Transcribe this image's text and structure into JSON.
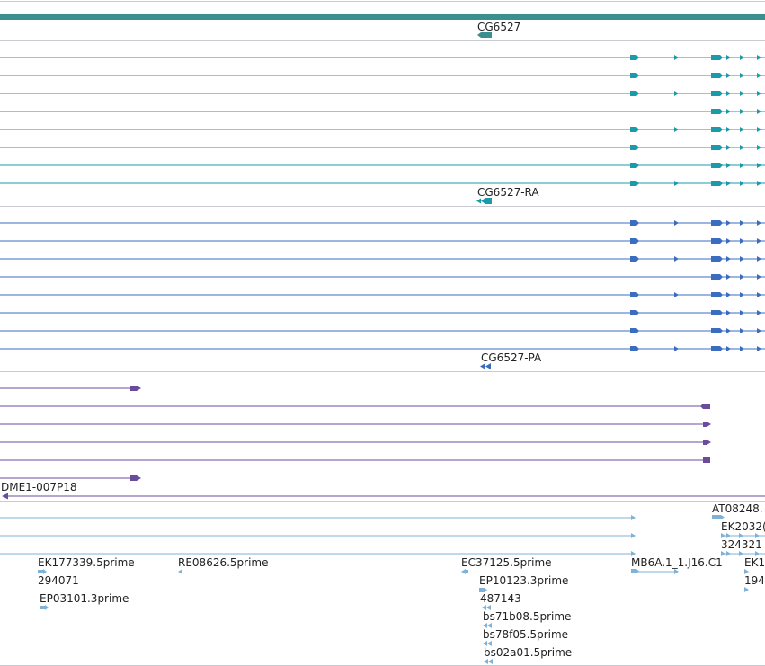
{
  "colors": {
    "gene": "#3a8f8f",
    "cds": "#1a9aaa",
    "mrna": "#3a6cc0",
    "cdna_clone": "#6a4c9c",
    "est": "#7fb2d6",
    "separator": "#c8ccd0"
  },
  "tracks": {
    "gene": {
      "label": "CG6527"
    },
    "cds": {
      "label": "CG6527-RA",
      "row_count": 8
    },
    "mrna": {
      "label": "CG6527-PA",
      "row_count": 8
    },
    "cdna_clone": {
      "label": "DME1-007P18"
    },
    "est": {
      "labels": [
        "AT08248.",
        "EK2032(",
        "324321",
        "EK177339.5prime",
        "RE08626.5prime",
        "EC37125.5prime",
        "MB6A.1_1.J16.C1",
        "EK1",
        "294071",
        "EP10123.3prime",
        "194",
        "EP03101.3prime",
        "487143",
        "bs71b08.5prime",
        "bs78f05.5prime",
        "bs02a01.5prime"
      ]
    }
  }
}
